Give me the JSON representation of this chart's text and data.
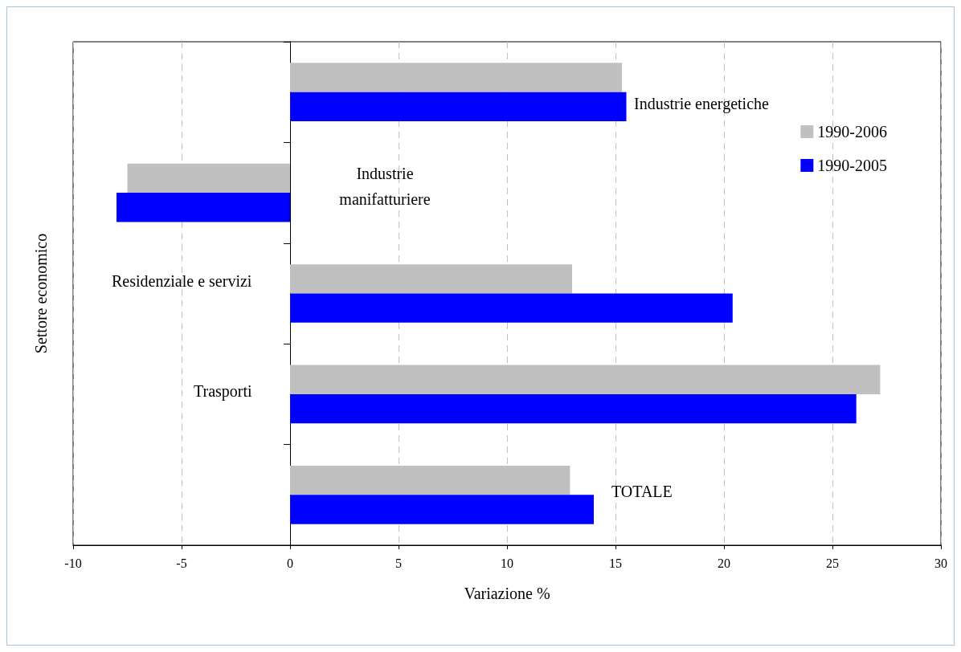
{
  "chart_data": {
    "type": "bar",
    "orientation": "horizontal",
    "xlabel": "Variazione %",
    "ylabel": "Settore economico",
    "categories": [
      "Industrie energetiche",
      "Industrie\nmanifatturiere",
      "Residenziale e servizi",
      "Trasporti",
      "TOTALE"
    ],
    "series": [
      {
        "name": "1990-2006",
        "color": "#c0c0c0",
        "values": [
          15.3,
          -7.5,
          13.0,
          27.2,
          12.9
        ]
      },
      {
        "name": "1990-2005",
        "color": "#0000ff",
        "values": [
          15.5,
          -8.0,
          20.4,
          26.1,
          14.0
        ]
      }
    ],
    "xlim": [
      -10,
      30
    ],
    "xticks": [
      -10,
      -5,
      0,
      5,
      10,
      15,
      20,
      25,
      30
    ],
    "grid": "x",
    "legend": "top right"
  }
}
